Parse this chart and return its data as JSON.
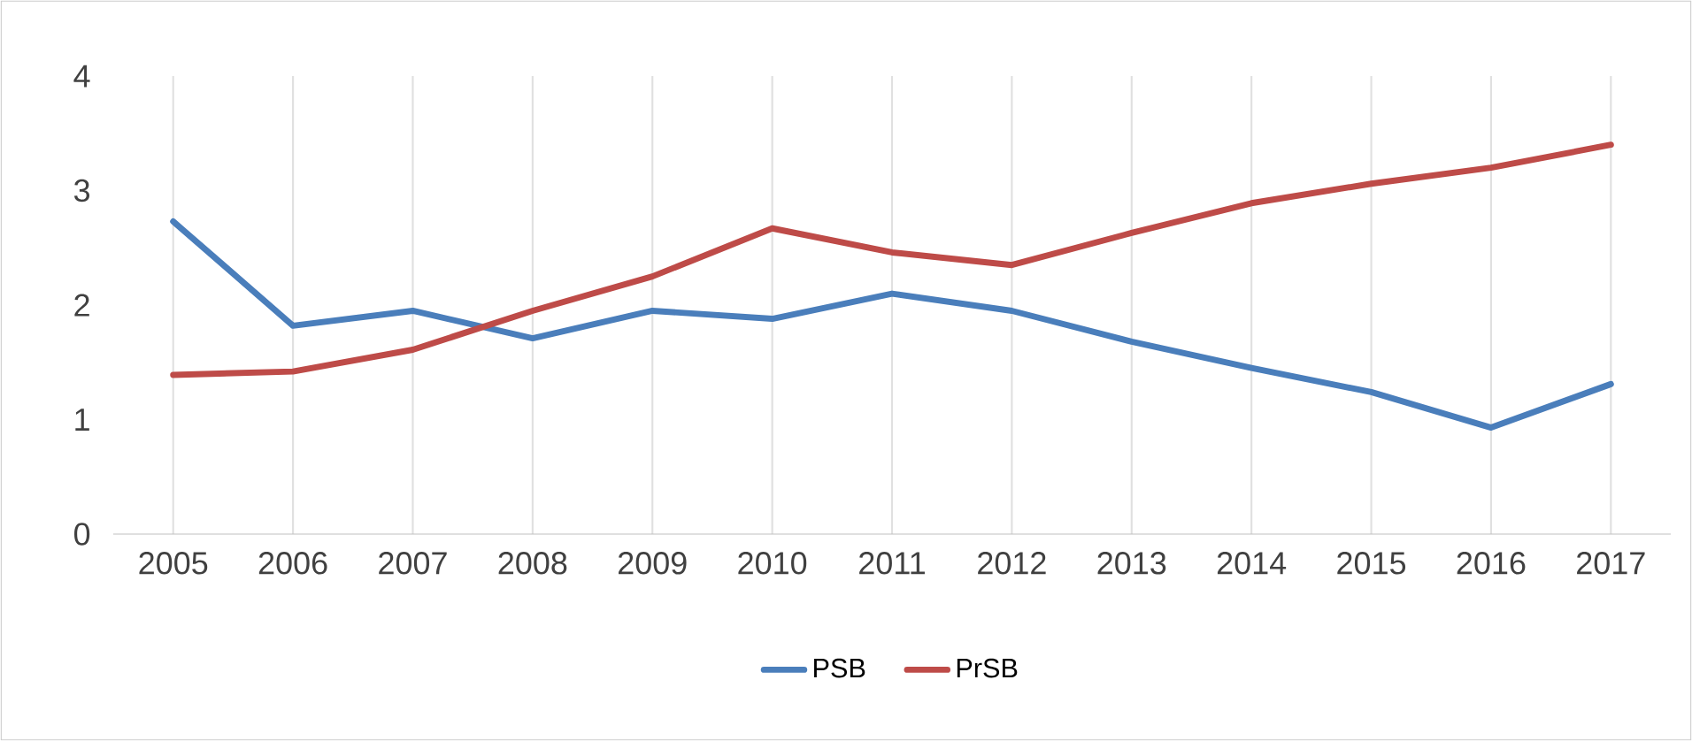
{
  "chart_data": {
    "type": "line",
    "categories": [
      "2005",
      "2006",
      "2007",
      "2008",
      "2009",
      "2010",
      "2011",
      "2012",
      "2013",
      "2014",
      "2015",
      "2016",
      "2017"
    ],
    "series": [
      {
        "name": "PSB",
        "color": "#4a7ebb",
        "values": [
          2.73,
          1.82,
          1.95,
          1.71,
          1.95,
          1.88,
          2.1,
          1.95,
          1.68,
          1.45,
          1.24,
          0.93,
          1.31
        ]
      },
      {
        "name": "PrSB",
        "color": "#be4b48",
        "values": [
          1.39,
          1.42,
          1.61,
          1.95,
          2.25,
          2.67,
          2.46,
          2.35,
          2.63,
          2.89,
          3.06,
          3.2,
          3.4
        ]
      }
    ],
    "ylim": [
      0,
      4
    ],
    "yticks": [
      0,
      1,
      2,
      3,
      4
    ],
    "grid": "x",
    "legend": "bottom",
    "marker": "none"
  }
}
